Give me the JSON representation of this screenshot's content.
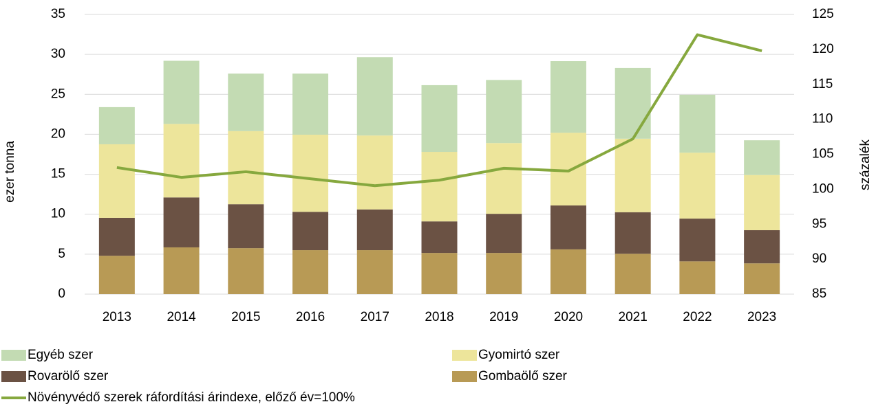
{
  "chart_data": {
    "type": "bar",
    "categories": [
      "2013",
      "2014",
      "2015",
      "2016",
      "2017",
      "2018",
      "2019",
      "2020",
      "2021",
      "2022",
      "2023"
    ],
    "ylabel": "ezer tonna",
    "y2label": "százalék",
    "ylim": [
      0,
      35
    ],
    "yticks": [
      0,
      5,
      10,
      15,
      20,
      25,
      30,
      35
    ],
    "y2lim": [
      85,
      125
    ],
    "y2ticks": [
      85,
      90,
      95,
      100,
      105,
      110,
      115,
      120,
      125
    ],
    "grid": true,
    "stacked": true,
    "series": [
      {
        "name": "Gombaölő szer",
        "color": "#b89a55",
        "values": [
          4.8,
          5.85,
          5.75,
          5.5,
          5.5,
          5.15,
          5.15,
          5.6,
          5.05,
          4.1,
          3.85
        ]
      },
      {
        "name": "Rovarölő szer",
        "color": "#6b5244",
        "values": [
          4.75,
          6.25,
          5.5,
          4.8,
          5.1,
          3.95,
          4.9,
          5.5,
          5.2,
          5.35,
          4.15
        ]
      },
      {
        "name": "Gyomirtó szer",
        "color": "#ede59b",
        "values": [
          9.2,
          9.2,
          9.15,
          9.65,
          9.25,
          8.7,
          8.85,
          9.1,
          9.2,
          8.25,
          6.9
        ]
      },
      {
        "name": "Egyéb szer",
        "color": "#c3dbb3",
        "values": [
          4.65,
          7.9,
          7.2,
          7.65,
          9.8,
          8.35,
          7.9,
          8.95,
          8.85,
          7.25,
          4.35
        ]
      },
      {
        "name": "Növényvédő szerek ráfordítási árindexe, előző év=100%",
        "color": "#86a83e",
        "type": "line",
        "axis": "y2",
        "values": [
          103.1,
          101.7,
          102.5,
          101.5,
          100.5,
          101.3,
          103.0,
          102.6,
          107.2,
          122.1,
          119.8
        ]
      }
    ]
  }
}
